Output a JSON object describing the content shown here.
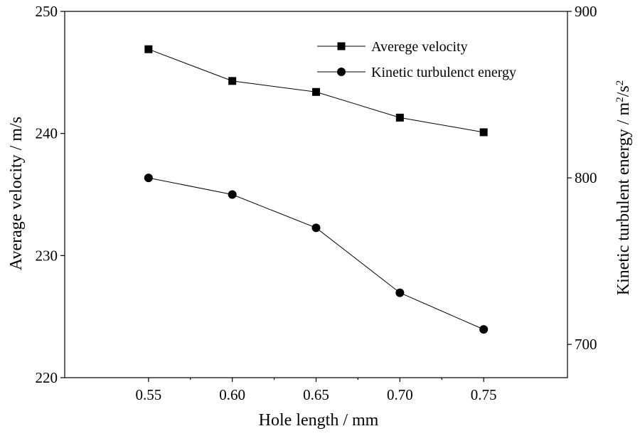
{
  "chart_data": {
    "type": "line",
    "x": [
      0.55,
      0.6,
      0.65,
      0.7,
      0.75
    ],
    "x_tick_labels": [
      "0.55",
      "0.60",
      "0.65",
      "0.70",
      "0.75"
    ],
    "xlabel": "Hole length / mm",
    "xlim": [
      0.5,
      0.8
    ],
    "y_left": {
      "label": "Average velocity / m/s",
      "lim": [
        220,
        250
      ],
      "ticks": [
        "220",
        "230",
        "240",
        "250"
      ]
    },
    "y_right": {
      "label_prefix": "Kinetic turbulent energy / m",
      "label_sup1": "2",
      "label_mid": "/s",
      "label_sup2": "2",
      "lim": [
        680,
        900
      ],
      "ticks": [
        "700",
        "800",
        "900"
      ]
    },
    "series": [
      {
        "name": "Averege velocity",
        "axis": "left",
        "marker": "square",
        "values": [
          246.9,
          244.3,
          243.4,
          241.3,
          240.1
        ]
      },
      {
        "name": "Kinetic turbulenct energy",
        "axis": "right",
        "marker": "circle",
        "values": [
          800,
          790,
          770,
          731,
          709
        ]
      }
    ],
    "legend_position": "top-right",
    "grid": false,
    "colors": {
      "line": "#000000",
      "marker": "#000000",
      "background": "#ffffff"
    }
  }
}
